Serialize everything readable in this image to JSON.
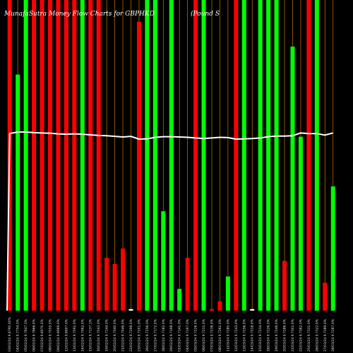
{
  "chart_data": {
    "type": "bar",
    "title": "MunafaSutra Money Flow Charts for GBPHKD",
    "subtitle": "(Pound S",
    "ylim": [
      0,
      100
    ],
    "colors": {
      "up": "#00ff00",
      "down": "#ff0000",
      "flat": "#ffffff",
      "line": "#ffffff",
      "guide": "#c87800"
    },
    "categories": [
      "03/02/24 9.6790.00%",
      "04/02/24 9.7754.0%",
      "05/02/24 9.7647.1%",
      "06/02/24 9.7666.0%",
      "07/02/24 9.6970.0%",
      "08/02/24 9.7055.0%",
      "09/02/24 9.6969.0%",
      "12/02/24 9.6997.0%",
      "13/02/24 9.7091.0%",
      "14/02/24 9.7062.0%",
      "15/02/24 9.7137.1%",
      "16/02/24 9.7043.0%",
      "19/02/24 9.7144.0%",
      "20/02/24 9.7040.0%",
      "21/02/24 9.7046.0%",
      "22/02/24 9.7298.0%",
      "23/02/24 9.7201.0%",
      "26/02/24 9.7256.0%",
      "27/02/24 9.7172.0%",
      "28/02/24 9.7182.0%",
      "29/02/24 9.7198.0%",
      "01/03/24 9.7141.0%",
      "04/03/24 9.7197.0%",
      "05/03/24 9.7226.0%",
      "06/03/24 9.7211.0%",
      "07/03/24 9.7238.0%",
      "08/03/24 9.7261.0%",
      "11/03/24 9.7280.0%",
      "12/03/24 9.7243.0%",
      "13/03/24 9.7256.0%",
      "14/03/24 9.7218.0%",
      "15/03/24 9.7234.0%",
      "18/03/24 9.7226.0%",
      "19/03/24 9.7246.0%",
      "20/03/24 9.7286.0%",
      "21/03/24 9.7301.0%",
      "22/03/24 9.7362.0%",
      "25/03/24 9.7331.0%",
      "26/03/24 9.7322.0%",
      "27/03/24 9.7289.0%",
      "28/03/24 9.7287.0%"
    ],
    "values": [
      100,
      76,
      100,
      100,
      100,
      100,
      100,
      100,
      100,
      100,
      100,
      100,
      17,
      15,
      20,
      0.5,
      93,
      100,
      100,
      32,
      100,
      7,
      17,
      100,
      100,
      0.5,
      3,
      11,
      100,
      100,
      0.5,
      100,
      100,
      100,
      16,
      85,
      56,
      100,
      100,
      9,
      40
    ],
    "directions": [
      "down",
      "up",
      "up",
      "down",
      "down",
      "down",
      "down",
      "down",
      "down",
      "up",
      "down",
      "down",
      "down",
      "down",
      "down",
      "flat",
      "down",
      "up",
      "up",
      "up",
      "up",
      "up",
      "down",
      "down",
      "up",
      "down",
      "down",
      "up",
      "down",
      "up",
      "flat",
      "up",
      "up",
      "up",
      "down",
      "up",
      "up",
      "down",
      "up",
      "down",
      "up"
    ],
    "series": [
      {
        "name": "",
        "type": "line",
        "values": [
          57,
          57.5,
          57.5,
          57.3,
          57.2,
          57.1,
          56.9,
          56.8,
          56.9,
          56.8,
          56.6,
          56.4,
          56.3,
          56.1,
          55.9,
          56.1,
          55.2,
          55.3,
          55.8,
          56.0,
          56.0,
          55.9,
          55.8,
          55.6,
          55.4,
          55.6,
          55.8,
          55.7,
          55.2,
          55.3,
          55.4,
          55.6,
          56.0,
          56.2,
          56.2,
          56.3,
          57.2,
          57.0,
          57.0,
          56.5,
          57.2
        ]
      }
    ]
  }
}
